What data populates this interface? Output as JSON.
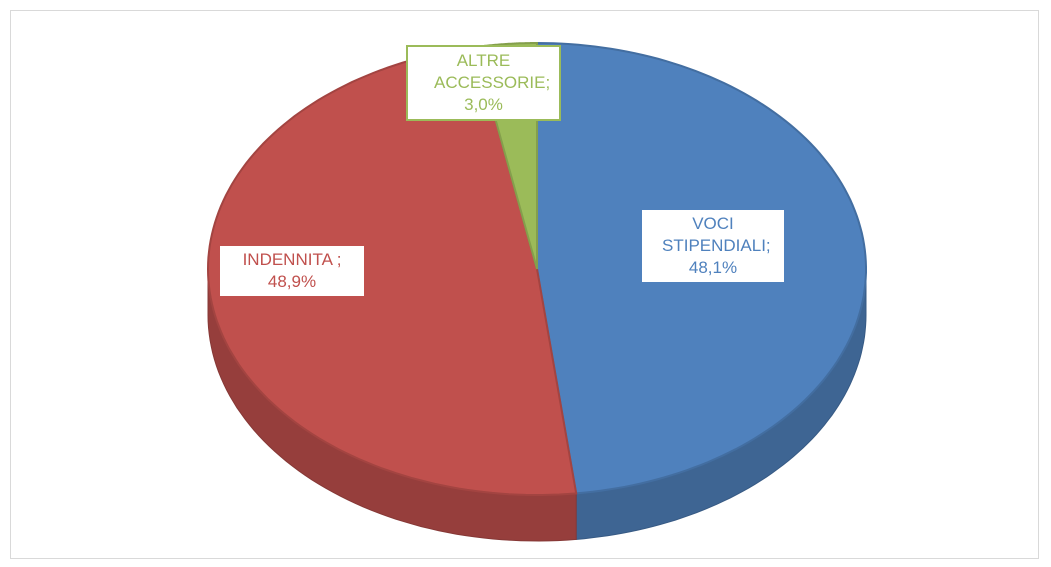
{
  "chart_data": {
    "type": "pie",
    "categories": [
      "VOCI STIPENDIALI;",
      "INDENNITA ;",
      "ALTRE ACCESSORIE;"
    ],
    "values": [
      48.1,
      48.9,
      3.0
    ],
    "value_labels": [
      "48,1%",
      "48,9%",
      "3,0%"
    ],
    "colors": [
      "#4f81bd",
      "#c0504d",
      "#9bbb59"
    ]
  }
}
